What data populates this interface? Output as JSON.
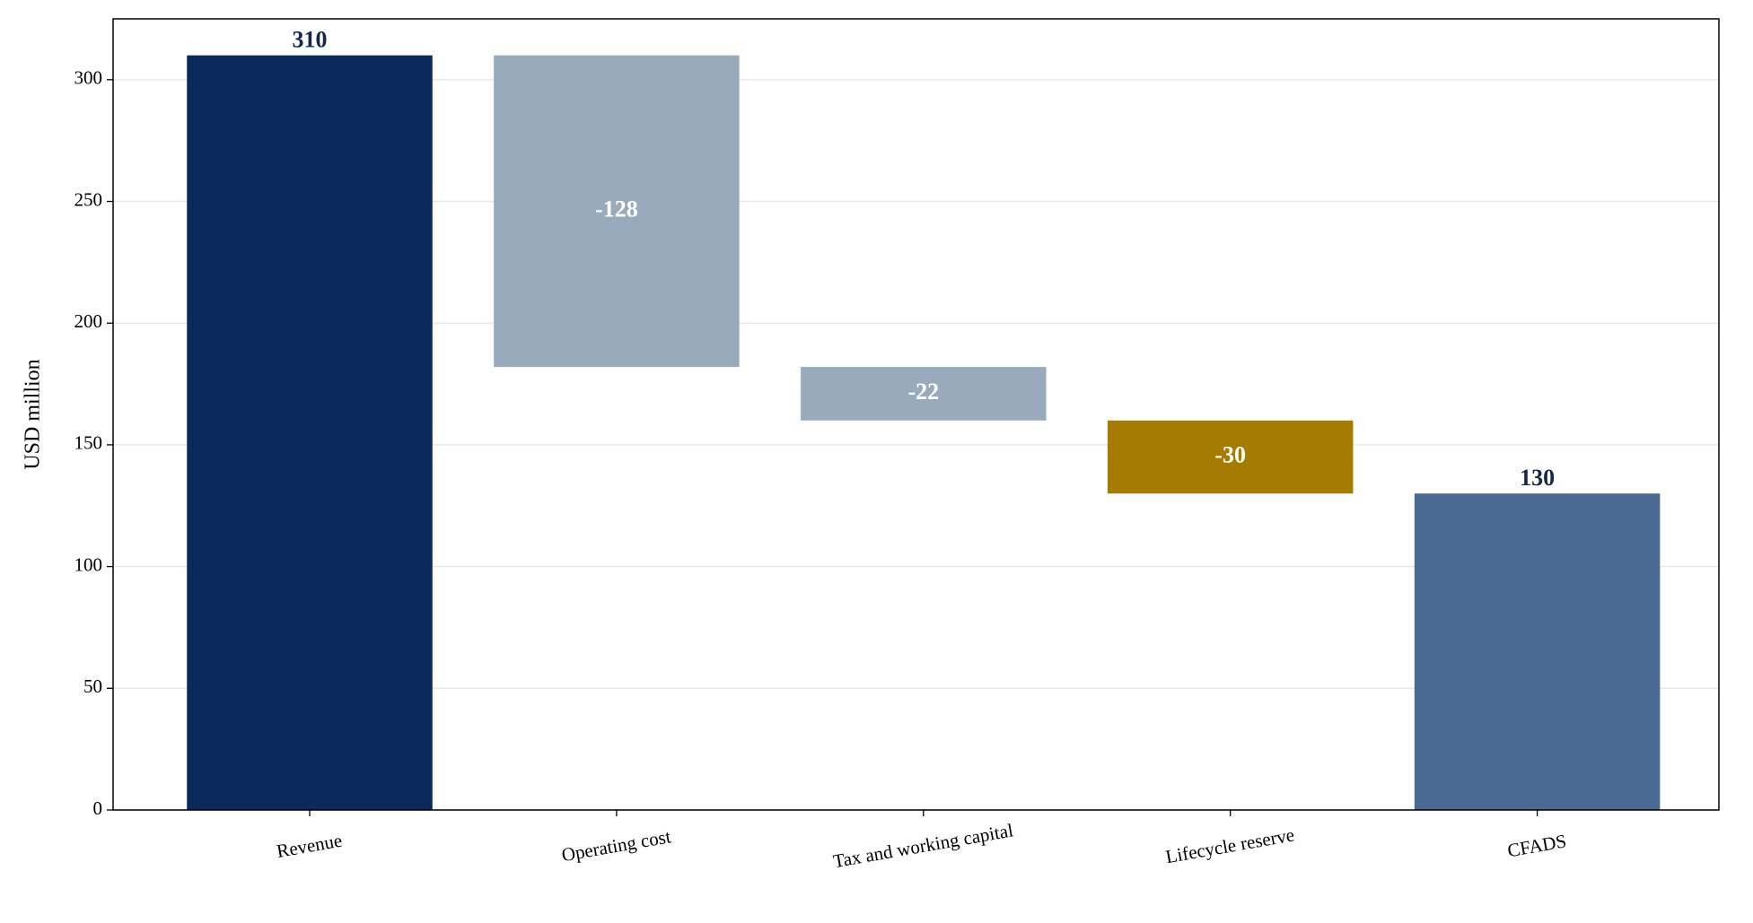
{
  "chart_data": {
    "type": "waterfall",
    "ylabel": "USD million",
    "categories": [
      "Revenue",
      "Operating cost",
      "Tax and working capital",
      "Lifecycle reserve",
      "CFADS"
    ],
    "values": [
      310,
      -128,
      -22,
      -30,
      130
    ],
    "measure": [
      "absolute",
      "relative",
      "relative",
      "relative",
      "total"
    ],
    "colors": [
      "#0a2a5e",
      "#9aaabd",
      "#9aaabd",
      "#a67c00",
      "#4a6a93"
    ],
    "ylim": [
      0,
      325
    ],
    "yticks": [
      0,
      50,
      100,
      150,
      200,
      250,
      300
    ],
    "grid": true
  }
}
